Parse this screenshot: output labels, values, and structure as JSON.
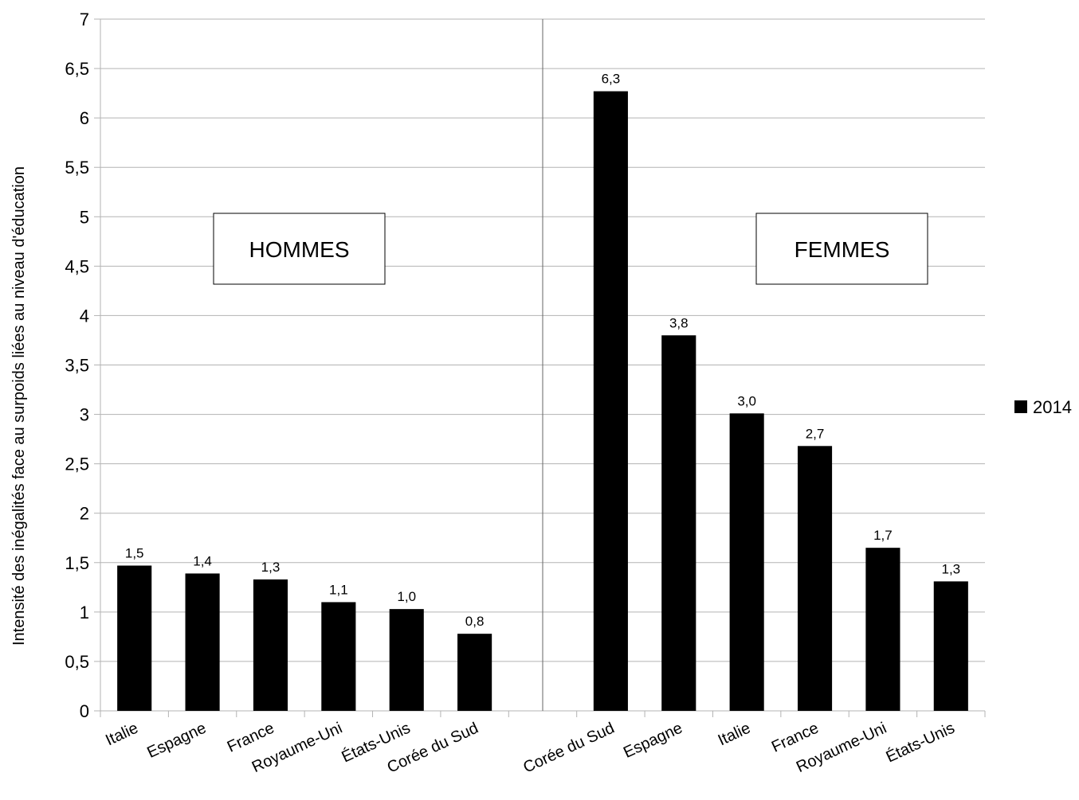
{
  "chart_data": {
    "type": "bar",
    "ylabel": "Intensité des inégalités face au surpoids liées au niveau d'éducation",
    "xlabel": "",
    "ylim": [
      0,
      7
    ],
    "ytick_step": 0.5,
    "ytick_labels": [
      "0",
      "0,5",
      "1",
      "1,5",
      "2",
      "2,5",
      "3",
      "3,5",
      "4",
      "4,5",
      "5",
      "5,5",
      "6",
      "6,5",
      "7"
    ],
    "grid": true,
    "legend_position": "right",
    "series": [
      {
        "name": "2014",
        "color": "#000000"
      }
    ],
    "groups": [
      {
        "label": "HOMMES",
        "categories": [
          "Italie",
          "Espagne",
          "France",
          "Royaume-Uni",
          "États-Unis",
          "Corée du Sud"
        ],
        "values": [
          1.47,
          1.39,
          1.33,
          1.1,
          1.03,
          0.78
        ],
        "value_labels": [
          "1,5",
          "1,4",
          "1,3",
          "1,1",
          "1,0",
          "0,8"
        ]
      },
      {
        "label": "FEMMES",
        "categories": [
          "Corée du Sud",
          "Espagne",
          "Italie",
          "France",
          "Royaume-Uni",
          "États-Unis"
        ],
        "values": [
          6.27,
          3.8,
          3.01,
          2.68,
          1.65,
          1.31
        ],
        "value_labels": [
          "6,3",
          "3,8",
          "3,0",
          "2,7",
          "1,7",
          "1,3"
        ]
      }
    ]
  }
}
